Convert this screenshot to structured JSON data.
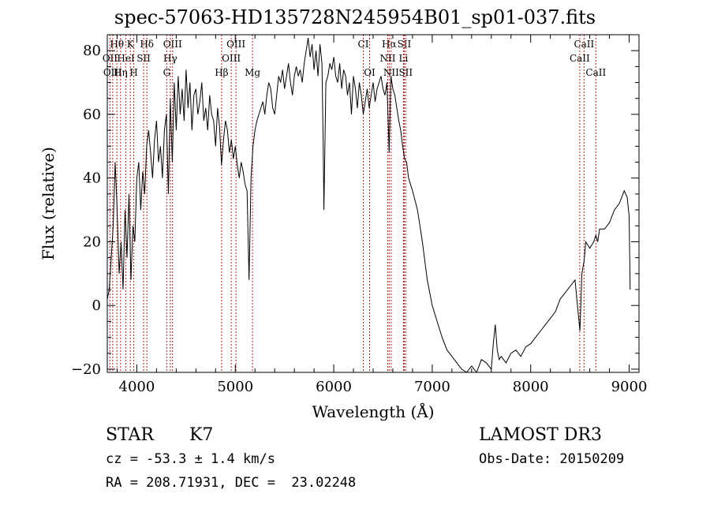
{
  "title": "spec-57063-HD135728N245954B01_sp01-037.fits",
  "info": {
    "obj_class": "STAR",
    "subclass": "K7",
    "survey": "LAMOST DR3",
    "cz": "cz = -53.3 ± 1.4 km/s",
    "obs_date": "Obs-Date: 20150209",
    "radec": "RA = 208.71931, DEC =  23.02248"
  },
  "colors": {
    "line_marker": "#b22222",
    "spectrum": "#000000"
  },
  "chart_data": {
    "type": "line",
    "xlabel": "Wavelength (Å)",
    "ylabel": "Flux (relative)",
    "xlim": [
      3700,
      9100
    ],
    "ylim": [
      -21,
      85
    ],
    "xticks": [
      4000,
      5000,
      6000,
      7000,
      8000,
      9000
    ],
    "yticks": [
      -20,
      0,
      20,
      40,
      60,
      80
    ],
    "grid": false,
    "series": [
      {
        "x": [
          3700,
          3720,
          3740,
          3760,
          3780,
          3800,
          3820,
          3840,
          3860,
          3880,
          3900,
          3920,
          3940,
          3960,
          3980,
          4000,
          4020,
          4040,
          4060,
          4080,
          4100,
          4120,
          4140,
          4160,
          4180,
          4200,
          4220,
          4240,
          4260,
          4280,
          4300,
          4320,
          4340,
          4360,
          4380,
          4400,
          4420,
          4440,
          4460,
          4480,
          4500,
          4520,
          4540,
          4560,
          4580,
          4600,
          4620,
          4640,
          4660,
          4680,
          4700,
          4720,
          4740,
          4760,
          4780,
          4800,
          4820,
          4840,
          4860,
          4880,
          4900,
          4920,
          4940,
          4960,
          4980,
          5000,
          5020,
          5040,
          5060,
          5080,
          5100,
          5120,
          5140,
          5160,
          5180,
          5200,
          5220,
          5240,
          5260,
          5280,
          5300,
          5320,
          5340,
          5360,
          5380,
          5400,
          5420,
          5440,
          5460,
          5480,
          5500,
          5520,
          5540,
          5560,
          5580,
          5600,
          5620,
          5640,
          5660,
          5680,
          5700,
          5720,
          5740,
          5760,
          5780,
          5800,
          5820,
          5840,
          5860,
          5880,
          5893,
          5900,
          5920,
          5940,
          5960,
          5980,
          6000,
          6020,
          6040,
          6060,
          6080,
          6100,
          6120,
          6140,
          6160,
          6180,
          6200,
          6220,
          6240,
          6260,
          6280,
          6300,
          6320,
          6340,
          6360,
          6380,
          6400,
          6420,
          6440,
          6460,
          6480,
          6500,
          6520,
          6540,
          6563,
          6580,
          6600,
          6620,
          6640,
          6660,
          6680,
          6700,
          6720,
          6740,
          6760,
          6780,
          6800,
          6850,
          6900,
          6950,
          7000,
          7050,
          7100,
          7150,
          7200,
          7250,
          7300,
          7350,
          7400,
          7450,
          7500,
          7550,
          7600,
          7620,
          7640,
          7660,
          7680,
          7700,
          7750,
          7800,
          7850,
          7900,
          7950,
          8000,
          8050,
          8100,
          8150,
          8200,
          8250,
          8300,
          8350,
          8400,
          8450,
          8500,
          8520,
          8542,
          8560,
          8600,
          8640,
          8662,
          8680,
          8700,
          8750,
          8800,
          8850,
          8900,
          8950,
          8980,
          9000,
          9010
        ],
        "y": [
          2,
          5,
          15,
          25,
          45,
          30,
          10,
          20,
          5,
          30,
          15,
          35,
          8,
          25,
          20,
          40,
          45,
          30,
          42,
          35,
          50,
          55,
          48,
          40,
          52,
          58,
          45,
          50,
          40,
          55,
          60,
          35,
          65,
          45,
          70,
          55,
          72,
          60,
          68,
          58,
          74,
          62,
          70,
          55,
          66,
          68,
          60,
          64,
          70,
          58,
          62,
          55,
          66,
          60,
          58,
          50,
          62,
          56,
          44,
          52,
          58,
          55,
          48,
          52,
          46,
          50,
          44,
          40,
          45,
          42,
          38,
          36,
          8,
          40,
          50,
          55,
          58,
          60,
          62,
          64,
          60,
          66,
          70,
          68,
          62,
          60,
          66,
          72,
          70,
          74,
          68,
          72,
          76,
          70,
          66,
          72,
          75,
          72,
          74,
          70,
          76,
          80,
          84,
          78,
          82,
          74,
          80,
          72,
          82,
          76,
          50,
          30,
          70,
          72,
          76,
          74,
          78,
          72,
          70,
          76,
          68,
          74,
          72,
          66,
          70,
          60,
          72,
          68,
          62,
          70,
          66,
          60,
          64,
          68,
          62,
          66,
          70,
          64,
          68,
          70,
          72,
          68,
          66,
          70,
          48,
          72,
          68,
          66,
          62,
          58,
          55,
          50,
          46,
          45,
          40,
          38,
          36,
          30,
          20,
          8,
          0,
          -5,
          -10,
          -14,
          -16,
          -18,
          -20,
          -21,
          -19,
          -21,
          -17,
          -18,
          -20,
          -12,
          -6,
          -14,
          -17,
          -16,
          -18,
          -15,
          -14,
          -16,
          -13,
          -12,
          -10,
          -8,
          -6,
          -4,
          -2,
          2,
          4,
          6,
          8,
          -8,
          10,
          14,
          20,
          18,
          20,
          22,
          20,
          24,
          24,
          26,
          30,
          32,
          36,
          34,
          28,
          5
        ]
      }
    ],
    "markers": [
      {
        "label": "Hθ",
        "wl": 3798,
        "row": 0
      },
      {
        "label": "OII",
        "wl": 3727,
        "row": 1
      },
      {
        "label": "OIII",
        "wl": 3755,
        "row": 2
      },
      {
        "label": "K",
        "wl": 3934,
        "row": 0
      },
      {
        "label": "HeI",
        "wl": 3889,
        "row": 1
      },
      {
        "label": "Hη",
        "wl": 3835,
        "row": 2
      },
      {
        "label": "Hδ",
        "wl": 4102,
        "row": 0
      },
      {
        "label": "SII",
        "wl": 4069,
        "row": 1
      },
      {
        "label": "H",
        "wl": 3969,
        "row": 2
      },
      {
        "label": "OIII",
        "wl": 4363,
        "row": 0
      },
      {
        "label": "Hγ",
        "wl": 4340,
        "row": 1
      },
      {
        "label": "G",
        "wl": 4304,
        "row": 2
      },
      {
        "label": "Hβ",
        "wl": 4861,
        "row": 2
      },
      {
        "label": "OIII",
        "wl": 5007,
        "row": 0
      },
      {
        "label": "OIII",
        "wl": 4959,
        "row": 1
      },
      {
        "label": "Mg",
        "wl": 5175,
        "row": 2
      },
      {
        "label": "CI",
        "wl": 6300,
        "row": 0
      },
      {
        "label": "OI",
        "wl": 6364,
        "row": 2
      },
      {
        "label": "Hα",
        "wl": 6563,
        "row": 0
      },
      {
        "label": "SII",
        "wl": 6716,
        "row": 0
      },
      {
        "label": "NII",
        "wl": 6548,
        "row": 1
      },
      {
        "label": "Li",
        "wl": 6708,
        "row": 1
      },
      {
        "label": "NII",
        "wl": 6583,
        "row": 2
      },
      {
        "label": "SII",
        "wl": 6731,
        "row": 2
      },
      {
        "label": "CaII",
        "wl": 8542,
        "row": 0
      },
      {
        "label": "CaII",
        "wl": 8498,
        "row": 1
      },
      {
        "label": "CaII",
        "wl": 8662,
        "row": 2
      }
    ]
  }
}
